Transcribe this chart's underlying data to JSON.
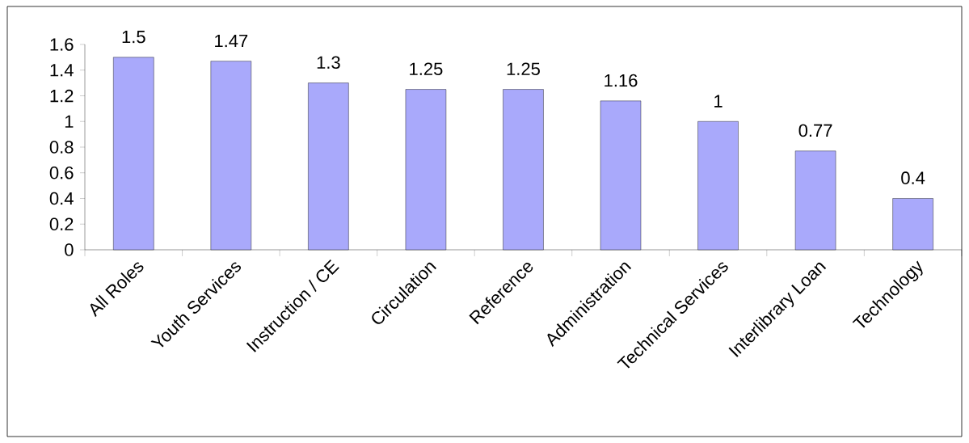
{
  "chart_data": {
    "type": "bar",
    "categories": [
      "All Roles",
      "Youth Services",
      "Instruction / CE",
      "Circulation",
      "Reference",
      "Administration",
      "Technical Services",
      "Interlibrary Loan",
      "Technology"
    ],
    "values": [
      1.5,
      1.47,
      1.3,
      1.25,
      1.25,
      1.16,
      1,
      0.77,
      0.4
    ],
    "color": "#a9a9fb",
    "ylim": [
      0,
      1.6
    ],
    "yticks": [
      0,
      0.2,
      0.4,
      0.6,
      0.8,
      1,
      1.2,
      1.4,
      1.6
    ],
    "data_labels": true
  }
}
